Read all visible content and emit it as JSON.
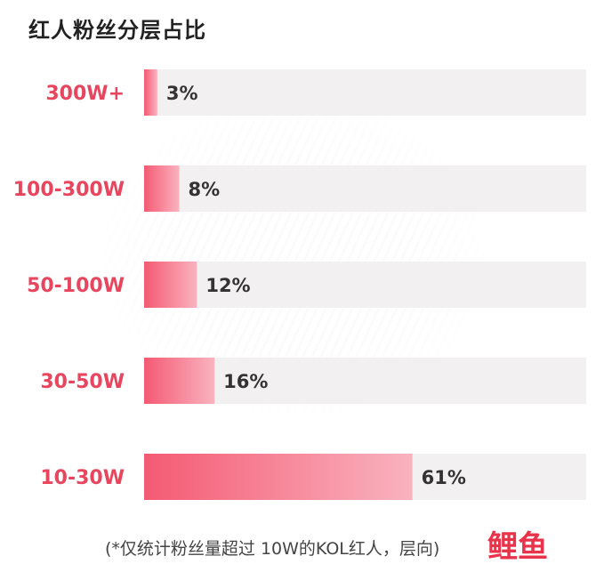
{
  "title": "红人粉丝分层占比",
  "note": "(*仅统计粉丝量超过 10W的KOL红人，层向)",
  "logo": {
    "text": "鲤鱼",
    "icon": "fish-logo-icon"
  },
  "colors": {
    "bar_start": "#f45a73",
    "bar_end": "#f9b3bf",
    "track": "#f2f0f1",
    "category_text": "#e8465f",
    "value_text": "#333333"
  },
  "chart_data": {
    "type": "bar",
    "orientation": "horizontal",
    "title": "红人粉丝分层占比",
    "categories": [
      "300W+",
      "100-300W",
      "50-100W",
      "30-50W",
      "10-30W"
    ],
    "values": [
      3,
      8,
      12,
      16,
      61
    ],
    "value_labels": [
      "3%",
      "8%",
      "12%",
      "16%",
      "61%"
    ],
    "unit": "%",
    "xlim": [
      0,
      100
    ],
    "grid": false,
    "legend": "none"
  }
}
